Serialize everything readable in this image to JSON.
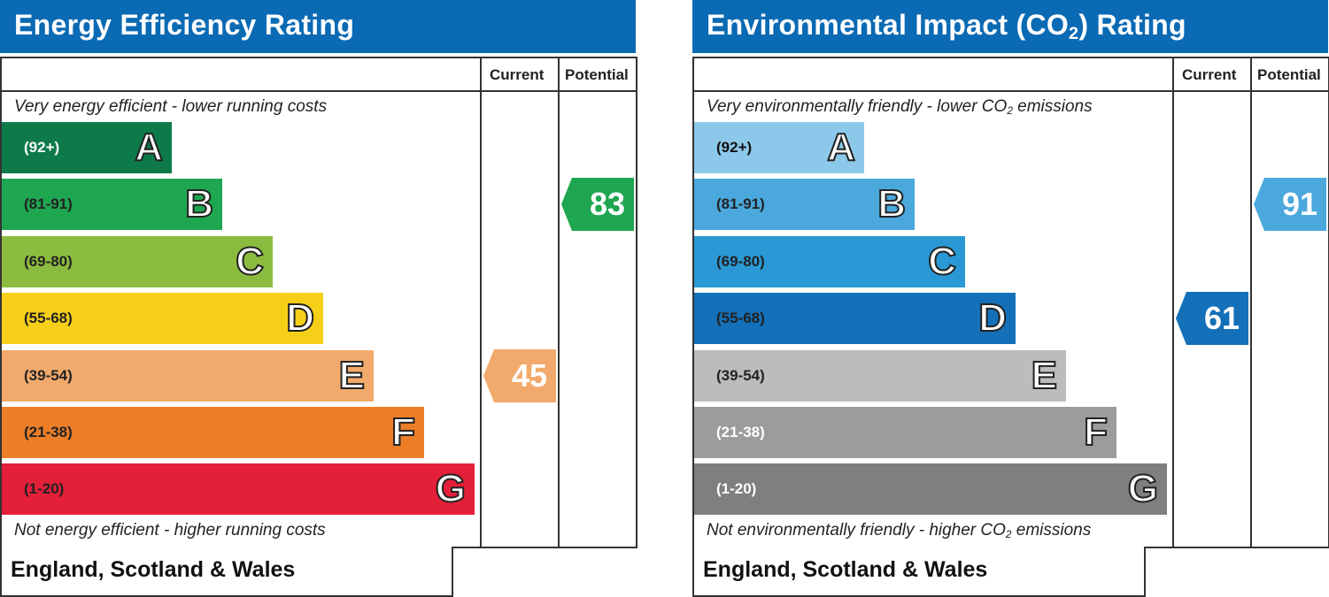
{
  "chart_data": [
    {
      "type": "bar",
      "title": "Energy Efficiency Rating",
      "columns": [
        "Current",
        "Potential"
      ],
      "top_caption": "Very energy efficient - lower running costs",
      "bottom_caption": "Not energy efficient - higher running costs",
      "footer": "England, Scotland & Wales",
      "bands": [
        {
          "letter": "A",
          "range": "(92+)",
          "min": 92,
          "max": 100,
          "color": "#0e7a4a",
          "text_color": "#ffffff"
        },
        {
          "letter": "B",
          "range": "(81-91)",
          "min": 81,
          "max": 91,
          "color": "#1fa650",
          "text_color": "#222222"
        },
        {
          "letter": "C",
          "range": "(69-80)",
          "min": 69,
          "max": 80,
          "color": "#8cbc3f",
          "text_color": "#222222"
        },
        {
          "letter": "D",
          "range": "(55-68)",
          "min": 55,
          "max": 68,
          "color": "#f6d018",
          "text_color": "#222222"
        },
        {
          "letter": "E",
          "range": "(39-54)",
          "min": 39,
          "max": 54,
          "color": "#f2aa6c",
          "text_color": "#222222"
        },
        {
          "letter": "F",
          "range": "(21-38)",
          "min": 21,
          "max": 38,
          "color": "#ec7e28",
          "text_color": "#222222"
        },
        {
          "letter": "G",
          "range": "(1-20)",
          "min": 1,
          "max": 20,
          "color": "#e41f3a",
          "text_color": "#222222"
        }
      ],
      "current": {
        "value": "45",
        "band": "E",
        "color": "#f2aa6c"
      },
      "potential": {
        "value": "83",
        "band": "B",
        "color": "#1fa650"
      }
    },
    {
      "type": "bar",
      "title": "Environmental Impact (CO",
      "title_sub": "2",
      "title_end": ") Rating",
      "columns": [
        "Current",
        "Potential"
      ],
      "top_caption": "Very environmentally friendly - lower CO",
      "top_caption_sub": "2",
      "top_caption_end": " emissions",
      "bottom_caption": "Not environmentally friendly - higher CO",
      "bottom_caption_sub": "2",
      "bottom_caption_end": " emissions",
      "footer": "England, Scotland & Wales",
      "bands": [
        {
          "letter": "A",
          "range": "(92+)",
          "min": 92,
          "max": 100,
          "color": "#8cc8ea",
          "text_color": "#111111"
        },
        {
          "letter": "B",
          "range": "(81-91)",
          "min": 81,
          "max": 91,
          "color": "#4aa8dc",
          "text_color": "#222222"
        },
        {
          "letter": "C",
          "range": "(69-80)",
          "min": 69,
          "max": 80,
          "color": "#2a98d4",
          "text_color": "#222222"
        },
        {
          "letter": "D",
          "range": "(55-68)",
          "min": 55,
          "max": 68,
          "color": "#1470b8",
          "text_color": "#222222"
        },
        {
          "letter": "E",
          "range": "(39-54)",
          "min": 39,
          "max": 54,
          "color": "#bcbcbc",
          "text_color": "#222222"
        },
        {
          "letter": "F",
          "range": "(21-38)",
          "min": 21,
          "max": 38,
          "color": "#9c9c9c",
          "text_color": "#ffffff"
        },
        {
          "letter": "G",
          "range": "(1-20)",
          "min": 1,
          "max": 20,
          "color": "#7f7f7f",
          "text_color": "#ffffff"
        }
      ],
      "current": {
        "value": "61",
        "band": "D",
        "color": "#1470b8"
      },
      "potential": {
        "value": "91",
        "band": "B",
        "color": "#4aa8dc"
      }
    }
  ]
}
